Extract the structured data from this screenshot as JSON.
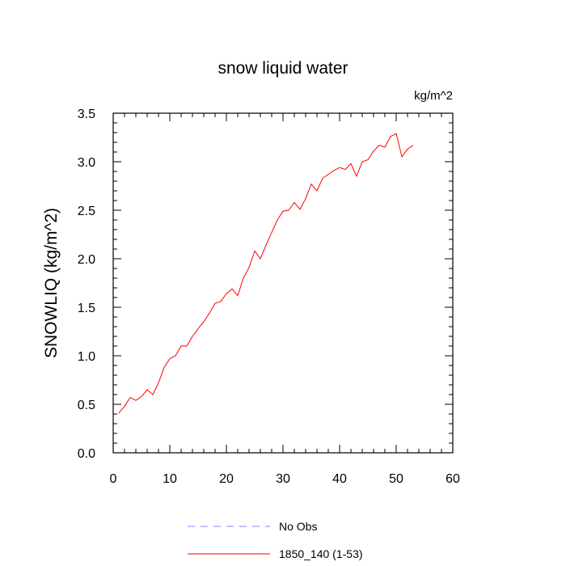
{
  "chart_data": {
    "type": "line",
    "title": "snow liquid water",
    "units": "kg/m^2",
    "xlabel": "",
    "ylabel": "SNOWLIQ  (kg/m^2)",
    "xlim": [
      0,
      60
    ],
    "ylim": [
      0,
      3.5
    ],
    "xticks": [
      0,
      10,
      20,
      30,
      40,
      50,
      60
    ],
    "yticks": [
      0.0,
      0.5,
      1.0,
      1.5,
      2.0,
      2.5,
      3.0,
      3.5
    ],
    "xtick_labels": [
      "0",
      "10",
      "20",
      "30",
      "40",
      "50",
      "60"
    ],
    "ytick_labels": [
      "0.0",
      "0.5",
      "1.0",
      "1.5",
      "2.0",
      "2.5",
      "3.0",
      "3.5"
    ],
    "grid": false,
    "legend_position": "bottom",
    "series": [
      {
        "name": "No Obs",
        "color": "#8080ff",
        "dash": true,
        "x": [],
        "values": []
      },
      {
        "name": "1850_140 (1-53)",
        "color": "#ff0000",
        "dash": false,
        "x": [
          1,
          2,
          3,
          4,
          5,
          6,
          7,
          8,
          9,
          10,
          11,
          12,
          13,
          14,
          15,
          16,
          17,
          18,
          19,
          20,
          21,
          22,
          23,
          24,
          25,
          26,
          27,
          28,
          29,
          30,
          31,
          32,
          33,
          34,
          35,
          36,
          37,
          38,
          39,
          40,
          41,
          42,
          43,
          44,
          45,
          46,
          47,
          48,
          49,
          50,
          51,
          52,
          53
        ],
        "values": [
          0.41,
          0.48,
          0.57,
          0.54,
          0.58,
          0.65,
          0.6,
          0.72,
          0.88,
          0.97,
          1.0,
          1.1,
          1.1,
          1.2,
          1.28,
          1.35,
          1.44,
          1.54,
          1.56,
          1.64,
          1.69,
          1.62,
          1.8,
          1.91,
          2.08,
          2.0,
          2.14,
          2.27,
          2.4,
          2.49,
          2.5,
          2.58,
          2.51,
          2.62,
          2.77,
          2.7,
          2.83,
          2.87,
          2.91,
          2.94,
          2.92,
          2.98,
          2.85,
          3.0,
          3.02,
          3.11,
          3.17,
          3.15,
          3.26,
          3.29,
          3.05,
          3.13,
          3.17
        ]
      }
    ]
  }
}
